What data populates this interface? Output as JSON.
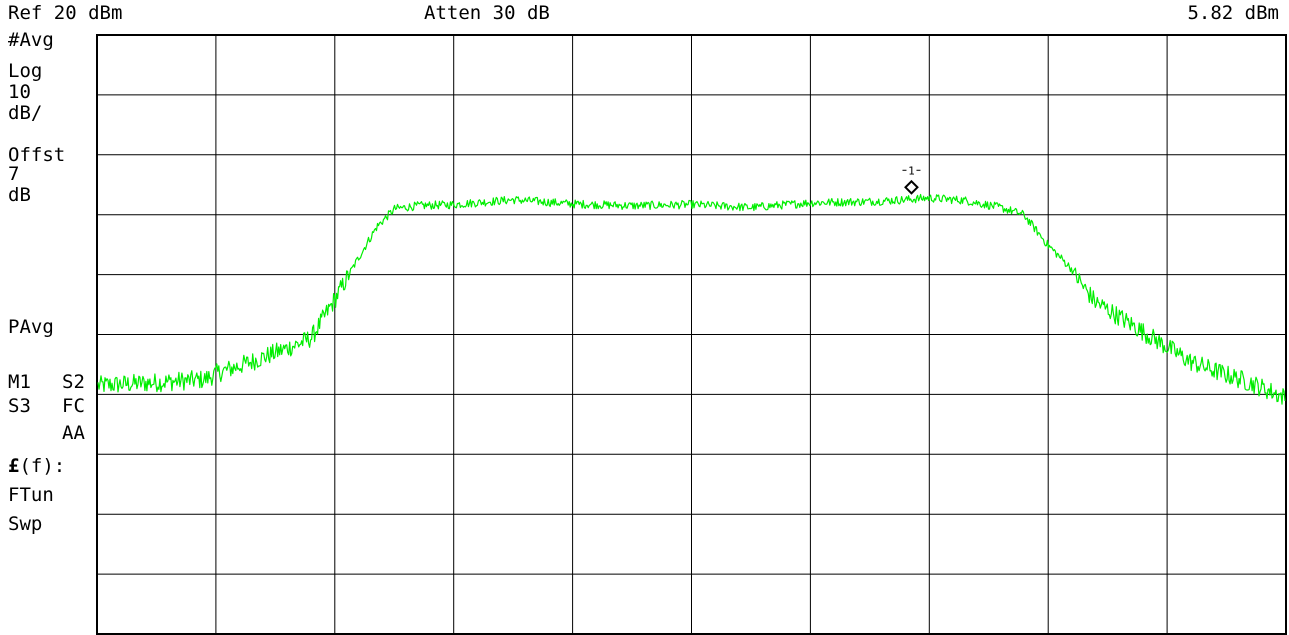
{
  "header": {
    "ref_level": "Ref 20 dBm",
    "attenuation": "Atten 30 dB",
    "marker_readout": "5.82 dBm"
  },
  "side_panel": {
    "trace_mode": "#Avg",
    "scale_type": "Log",
    "scale_value": "10",
    "scale_unit": "dB/",
    "offset_label": "Offst",
    "offset_value": "7",
    "offset_unit": "dB",
    "power_avg": "PAvg",
    "m1": "M1",
    "s2": "S2",
    "s3": "S3",
    "fc": "FC",
    "aa": "AA",
    "pound_f_symbol": "£",
    "pound_f_rest": "(f):",
    "ftun": "FTun",
    "swp": "Swp"
  },
  "colors": {
    "trace": "#00ee00",
    "grid": "#000000",
    "background": "#ffffff"
  },
  "chart_data": {
    "type": "line",
    "grid": true,
    "divisions": {
      "x": 10,
      "y": 10
    },
    "ylim": [
      -80,
      20
    ],
    "y_unit": "dBm",
    "marker": {
      "label": "1",
      "value": 5.82,
      "x_fraction": 0.685
    },
    "series": [
      {
        "points": [
          [
            0.0,
            -38.5
          ],
          [
            0.05,
            -38.0
          ],
          [
            0.09,
            -37.5
          ],
          [
            0.1,
            -36.5
          ],
          [
            0.13,
            -34.5
          ],
          [
            0.15,
            -33.0
          ],
          [
            0.17,
            -31.5
          ],
          [
            0.18,
            -30.5
          ],
          [
            0.2,
            -24.0
          ],
          [
            0.22,
            -17.0
          ],
          [
            0.235,
            -12.0
          ],
          [
            0.25,
            -9.0
          ],
          [
            0.27,
            -8.5
          ],
          [
            0.3,
            -8.3
          ],
          [
            0.35,
            -7.5
          ],
          [
            0.4,
            -8.2
          ],
          [
            0.45,
            -8.5
          ],
          [
            0.5,
            -8.3
          ],
          [
            0.55,
            -8.8
          ],
          [
            0.6,
            -8.0
          ],
          [
            0.65,
            -7.8
          ],
          [
            0.68,
            -7.5
          ],
          [
            0.7,
            -7.2
          ],
          [
            0.73,
            -7.6
          ],
          [
            0.76,
            -8.8
          ],
          [
            0.78,
            -10.0
          ],
          [
            0.8,
            -15.0
          ],
          [
            0.81,
            -17.0
          ],
          [
            0.82,
            -19.0
          ],
          [
            0.83,
            -22.0
          ],
          [
            0.84,
            -24.5
          ],
          [
            0.86,
            -27.0
          ],
          [
            0.88,
            -29.5
          ],
          [
            0.9,
            -32.0
          ],
          [
            0.92,
            -34.5
          ],
          [
            0.94,
            -36.0
          ],
          [
            0.97,
            -38.0
          ],
          [
            1.0,
            -40.5
          ]
        ]
      }
    ]
  }
}
